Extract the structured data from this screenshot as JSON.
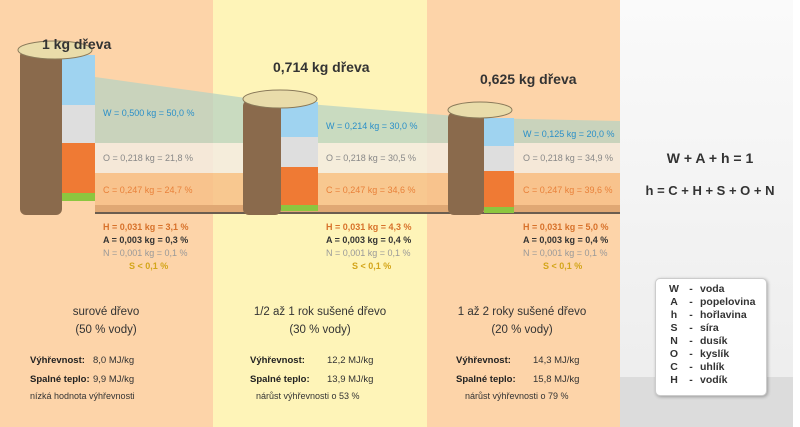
{
  "colors": {
    "orange_bg": "#fdd4a9",
    "yellow_bg": "#fef4b8",
    "gray_bg": "#efefef",
    "water": "#9fd3f0",
    "oxygen": "#dedede",
    "carbon": "#ef7a34",
    "green": "#8cc63f"
  },
  "columns": [
    {
      "title": "1 kg dřeva",
      "W": "W = 0,500 kg = 50,0 %",
      "O": "O = 0,218 kg = 21,8 %",
      "C": "C = 0,247 kg = 24,7 %",
      "H": "H = 0,031 kg = 3,1 %",
      "A": "A = 0,003 kg = 0,3 %",
      "N": "N = 0,001 kg = 0,1 %",
      "S": "S < 0,1 %",
      "name": "surové dřevo",
      "water": "(50 % vody)",
      "vyh_label": "Výhřevnost:",
      "vyh": "8,0 MJ/kg",
      "spal_label": "Spalné teplo:",
      "spal": "9,9 MJ/kg",
      "note": "nízká hodnota výhřevnosti"
    },
    {
      "title": "0,714 kg dřeva",
      "W": "W = 0,214 kg = 30,0 %",
      "O": "O = 0,218 kg = 30,5 %",
      "C": "C = 0,247 kg = 34,6 %",
      "H": "H = 0,031 kg = 4,3 %",
      "A": "A = 0,003 kg = 0,4 %",
      "N": "N = 0,001 kg = 0,1 %",
      "S": "S < 0,1 %",
      "name": "1/2 až 1 rok sušené dřevo",
      "water": "(30 % vody)",
      "vyh_label": "Výhřevnost:",
      "vyh": "12,2 MJ/kg",
      "spal_label": "Spalné teplo:",
      "spal": "13,9 MJ/kg",
      "note": "nárůst výhřevnosti o 53 %"
    },
    {
      "title": "0,625 kg dřeva",
      "W": "W = 0,125 kg = 20,0 %",
      "O": "O = 0,218 kg = 34,9 %",
      "C": "C = 0,247 kg = 39,6 %",
      "H": "H = 0,031 kg = 5,0 %",
      "A": "A = 0,003 kg = 0,4 %",
      "N": "N = 0,001 kg = 0,1 %",
      "S": "S < 0,1 %",
      "name": "1 až 2 roky sušené dřevo",
      "water": "(20 % vody)",
      "vyh_label": "Výhřevnost:",
      "vyh": "14,3 MJ/kg",
      "spal_label": "Spalné teplo:",
      "spal": "15,8 MJ/kg",
      "note": "nárůst výhřevnosti o 79 %"
    }
  ],
  "formulas": [
    "W + A + h = 1",
    "h = C + H + S + O + N"
  ],
  "legend": [
    {
      "sym": "W",
      "text": "voda"
    },
    {
      "sym": "A",
      "text": "popelovina"
    },
    {
      "sym": "h",
      "text": "hořlavina"
    },
    {
      "sym": "S",
      "text": "síra"
    },
    {
      "sym": "N",
      "text": "dusík"
    },
    {
      "sym": "O",
      "text": "kyslík"
    },
    {
      "sym": "C",
      "text": "uhlík"
    },
    {
      "sym": "H",
      "text": "vodík"
    }
  ]
}
